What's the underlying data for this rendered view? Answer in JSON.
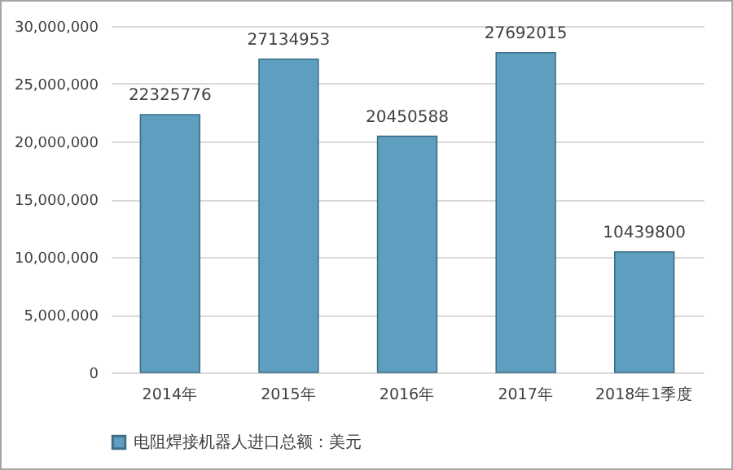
{
  "chart_data": {
    "type": "bar",
    "categories": [
      "2014年",
      "2015年",
      "2016年",
      "2017年",
      "2018年1季度"
    ],
    "series": [
      {
        "name": "电阻焊接机器人进口总额：美元",
        "color": "#5e9ebf",
        "values": [
          22325776,
          27134953,
          20450588,
          27692015,
          10439800
        ]
      }
    ],
    "ylim": [
      0,
      30000000
    ],
    "yticks": [
      0,
      {
        "value": 5000000,
        "label": "5,000,000"
      },
      {
        "value": 10000000,
        "label": "10,000,000"
      },
      {
        "value": 15000000,
        "label": "15,000,000"
      },
      {
        "value": 20000000,
        "label": "20,000,000"
      },
      {
        "value": 25000000,
        "label": "25,000,000"
      },
      {
        "value": 30000000,
        "label": "30,000,000"
      }
    ],
    "grid": "y",
    "legend": "bottom",
    "data_labels": true
  }
}
